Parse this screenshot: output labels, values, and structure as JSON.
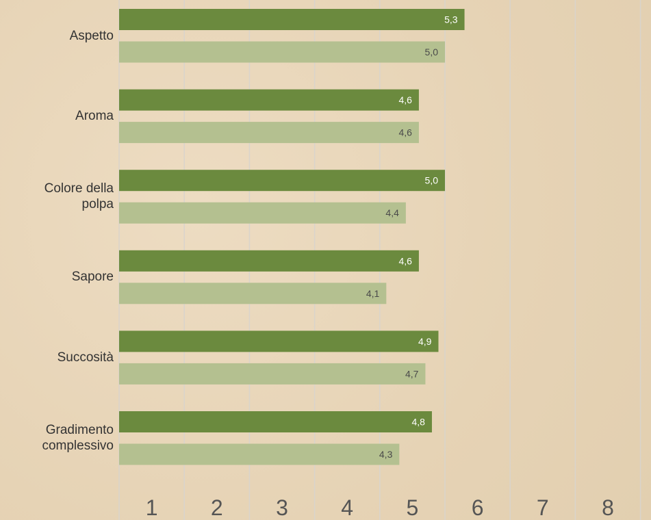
{
  "chart_data": {
    "type": "hbar",
    "categories": [
      "Aspetto",
      "Aroma",
      "Colore della polpa",
      "Sapore",
      "Succosità",
      "Gradimento complessivo"
    ],
    "series": [
      {
        "color": "#6b8a3e",
        "label_color": "#ffffff",
        "values": [
          5.3,
          4.6,
          5.0,
          4.6,
          4.9,
          4.8
        ],
        "value_labels": [
          "5,3",
          "4,6",
          "5,0",
          "4,6",
          "4,9",
          "4,8"
        ]
      },
      {
        "color": "#b4c090",
        "label_color": "#4a4a4a",
        "values": [
          5.0,
          4.6,
          4.4,
          4.1,
          4.7,
          4.3
        ],
        "value_labels": [
          "5,0",
          "4,6",
          "4,4",
          "4,1",
          "4,7",
          "4,3"
        ]
      }
    ],
    "xlim": [
      0,
      8.16
    ],
    "xticks": [
      {
        "value": 0.5,
        "label": "1"
      },
      {
        "value": 1.5,
        "label": "2"
      },
      {
        "value": 2.5,
        "label": "3"
      },
      {
        "value": 3.5,
        "label": "4"
      },
      {
        "value": 4.5,
        "label": "5"
      },
      {
        "value": 5.5,
        "label": "6"
      },
      {
        "value": 6.5,
        "label": "7"
      },
      {
        "value": 7.5,
        "label": "8"
      }
    ],
    "xgrid": [
      0,
      1,
      2,
      3,
      4,
      5,
      6,
      7,
      8
    ],
    "grid": true
  }
}
